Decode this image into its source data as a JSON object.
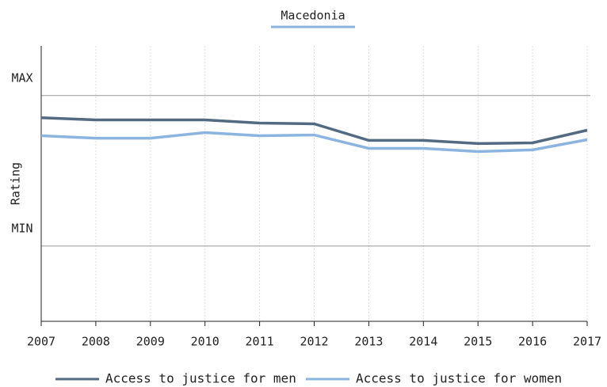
{
  "chart_data": {
    "type": "line",
    "title": "Macedonia",
    "y_label": "Rating",
    "x": [
      2007,
      2008,
      2009,
      2010,
      2011,
      2012,
      2013,
      2014,
      2015,
      2016,
      2017
    ],
    "series": [
      {
        "name": "Access to justice for men",
        "color": "#536b82",
        "values": [
          0.853,
          0.838,
          0.838,
          0.838,
          0.817,
          0.812,
          0.702,
          0.702,
          0.681,
          0.686,
          0.77
        ]
      },
      {
        "name": "Access to justice for women",
        "color": "#8cb4e0",
        "values": [
          0.733,
          0.717,
          0.717,
          0.754,
          0.733,
          0.738,
          0.649,
          0.649,
          0.628,
          0.639,
          0.707
        ]
      }
    ],
    "xlim": [
      2007,
      2017
    ],
    "xticks": [
      2007,
      2008,
      2009,
      2010,
      2011,
      2012,
      2013,
      2014,
      2015,
      2016,
      2017
    ],
    "ylim": [
      -0.5,
      1.33
    ],
    "yticks": [
      {
        "value": 0,
        "label": "MIN"
      },
      {
        "value": 1,
        "label": "MAX"
      }
    ],
    "grid": true,
    "legend": "bottom"
  }
}
